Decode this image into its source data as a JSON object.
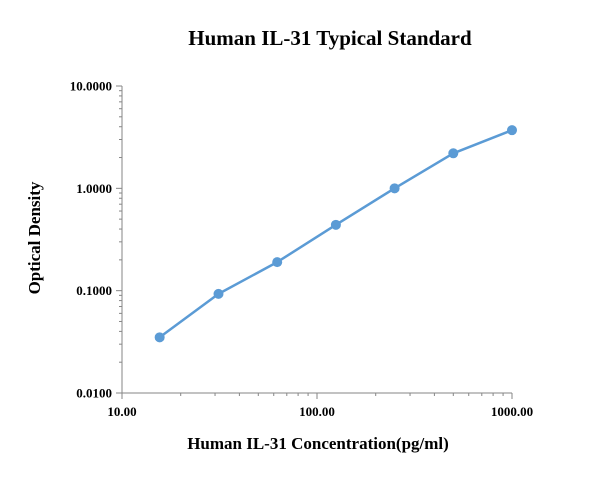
{
  "chart_data": {
    "type": "line",
    "title": "Human IL-31 Typical Standard",
    "xlabel": "Human IL-31 Concentration(pg/ml)",
    "ylabel": "Optical Density",
    "x_scale": "log",
    "y_scale": "log",
    "xlim": [
      10,
      1000
    ],
    "ylim": [
      0.01,
      10
    ],
    "x_ticks": [
      "10.00",
      "100.00",
      "1000.00"
    ],
    "y_ticks": [
      "0.0100",
      "0.1000",
      "1.0000",
      "10.0000"
    ],
    "grid": false,
    "legend": "none",
    "series": [
      {
        "x": [
          15.6,
          31.25,
          62.5,
          125,
          250,
          500,
          1000
        ],
        "y": [
          0.035,
          0.093,
          0.19,
          0.44,
          1.0,
          2.2,
          3.7
        ],
        "color": "#5B9BD5"
      }
    ]
  }
}
